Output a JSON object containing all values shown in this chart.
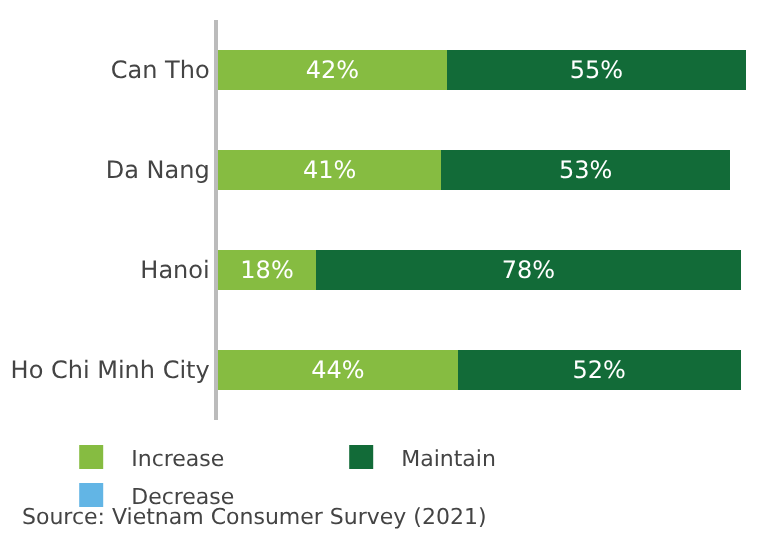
{
  "chart_data": {
    "type": "bar",
    "orientation": "horizontal",
    "stacked": true,
    "legend": "bottom",
    "categories": [
      "Can Tho",
      "Da Nang",
      "Hanoi",
      "Ho Chi Minh City"
    ],
    "series": [
      {
        "name": "Increase",
        "color": "#86bc41",
        "values": [
          42,
          41,
          18,
          44
        ],
        "value_labels": [
          "42%",
          "41%",
          "18%",
          "44%"
        ]
      },
      {
        "name": "Maintain",
        "color": "#126b38",
        "values": [
          55,
          53,
          78,
          52
        ],
        "value_labels": [
          "55%",
          "53%",
          "78%",
          "52%"
        ]
      },
      {
        "name": "Decrease",
        "color": "#62b5e5",
        "values": [
          null,
          null,
          null,
          null
        ]
      }
    ],
    "annotations": [
      "Source: Vietnam Consumer Survey (2021)"
    ]
  }
}
